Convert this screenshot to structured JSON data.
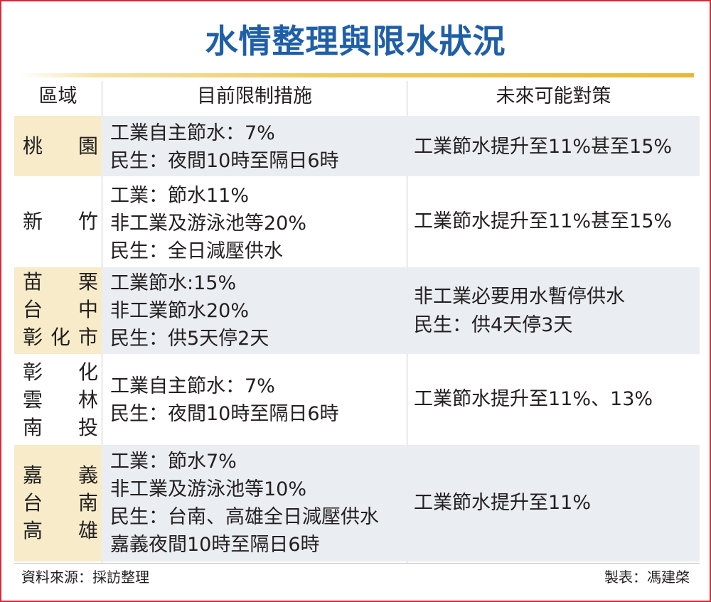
{
  "title": "水情整理與限水狀況",
  "headers": {
    "region": "區域",
    "measures": "目前限制措施",
    "future": "未來可能對策"
  },
  "rows": [
    {
      "region": [
        [
          "桃",
          "園"
        ]
      ],
      "measures": [
        "工業自主節水：7%",
        "民生：夜間10時至隔日6時"
      ],
      "future": [
        "工業節水提升至11%甚至15%"
      ]
    },
    {
      "region": [
        [
          "新",
          "竹"
        ]
      ],
      "measures": [
        "工業：節水11%",
        "非工業及游泳池等20%",
        "民生：全日減壓供水"
      ],
      "future": [
        "工業節水提升至11%甚至15%"
      ]
    },
    {
      "region": [
        [
          "苗",
          "栗"
        ],
        [
          "台",
          "中"
        ],
        [
          "彰",
          "化",
          "市"
        ]
      ],
      "measures": [
        "工業節水:15%",
        "非工業節水20%",
        "民生：供5天停2天"
      ],
      "future": [
        "非工業必要用水暫停供水",
        "民生：供4天停3天"
      ]
    },
    {
      "region": [
        [
          "彰",
          "化"
        ],
        [
          "雲",
          "林"
        ],
        [
          "南",
          "投"
        ]
      ],
      "measures": [
        "工業自主節水：7%",
        "民生：夜間10時至隔日6時"
      ],
      "future": [
        "工業節水提升至11%、13%"
      ]
    },
    {
      "region": [
        [
          "嘉",
          "義"
        ],
        [
          "台",
          "南"
        ],
        [
          "高",
          "雄"
        ]
      ],
      "measures": [
        "工業：節水7%",
        "非工業及游泳池等10%",
        "民生：台南、高雄全日減壓供水",
        "嘉義夜間10時至隔日6時"
      ],
      "future": [
        "工業節水提升至11%"
      ]
    }
  ],
  "footer": {
    "source": "資料來源：採訪整理",
    "credit": "製表：馮建棨"
  },
  "colors": {
    "title": "#1f5fa8",
    "frame_border": "#d6283a",
    "row_shade": "#eaedf2",
    "region_shade": "#f7ebc9",
    "rule_gold": "#e9b936"
  }
}
